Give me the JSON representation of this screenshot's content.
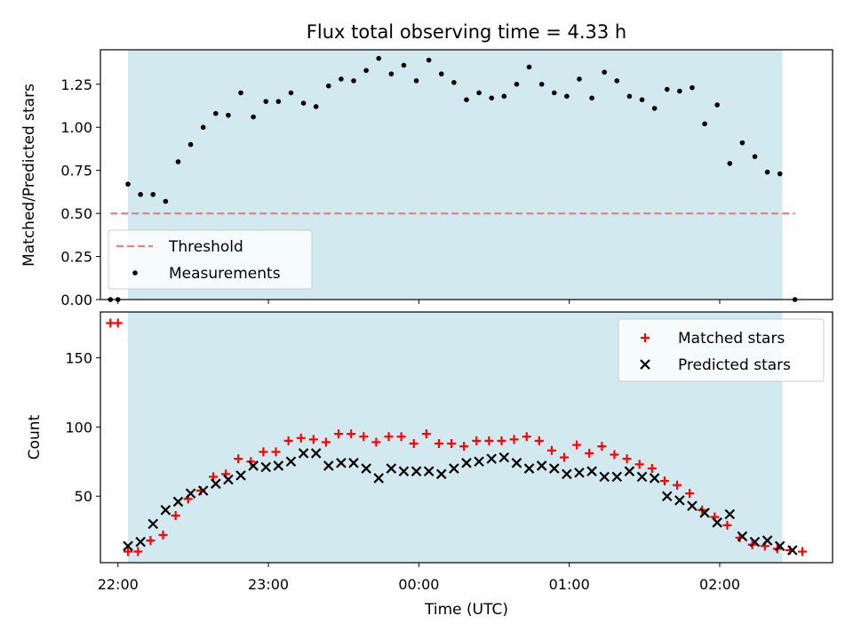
{
  "chart_data": [
    {
      "type": "scatter",
      "title": "Flux total observing time = 4.33 h",
      "ylabel": "Matched/Predicted stars",
      "xlim": [
        "21:53",
        "02:45"
      ],
      "ylim": [
        0,
        1.45
      ],
      "y_ticks": [
        "0.00",
        "0.25",
        "0.50",
        "0.75",
        "1.00",
        "1.25"
      ],
      "shaded_interval": [
        "22:04",
        "02:25"
      ],
      "shade_color": "#d2e9f0",
      "threshold": {
        "name": "Threshold",
        "value": 0.5,
        "x_range": [
          "21:57",
          "02:30"
        ],
        "color": "#f08080"
      },
      "legend": {
        "position": "lower-left",
        "entries": [
          "Threshold",
          "Measurements"
        ]
      },
      "series": [
        {
          "name": "Measurements",
          "color": "#000000",
          "x": [
            "21:57",
            "22:00",
            "22:04",
            "22:09",
            "22:14",
            "22:19",
            "22:24",
            "22:29",
            "22:34",
            "22:39",
            "22:44",
            "22:49",
            "22:54",
            "22:59",
            "23:04",
            "23:09",
            "23:14",
            "23:19",
            "23:24",
            "23:29",
            "23:34",
            "23:39",
            "23:44",
            "23:49",
            "23:54",
            "23:59",
            "00:04",
            "00:09",
            "00:14",
            "00:19",
            "00:24",
            "00:29",
            "00:34",
            "00:39",
            "00:44",
            "00:49",
            "00:54",
            "00:59",
            "01:04",
            "01:09",
            "01:14",
            "01:19",
            "01:24",
            "01:29",
            "01:34",
            "01:39",
            "01:44",
            "01:49",
            "01:54",
            "01:59",
            "02:04",
            "02:09",
            "02:14",
            "02:19",
            "02:24",
            "02:30"
          ],
          "y": [
            0.0,
            0.0,
            0.67,
            0.61,
            0.61,
            0.57,
            0.8,
            0.9,
            1.0,
            1.08,
            1.07,
            1.2,
            1.06,
            1.15,
            1.15,
            1.2,
            1.14,
            1.12,
            1.24,
            1.28,
            1.27,
            1.33,
            1.4,
            1.31,
            1.36,
            1.27,
            1.39,
            1.31,
            1.26,
            1.16,
            1.2,
            1.17,
            1.18,
            1.25,
            1.35,
            1.25,
            1.2,
            1.18,
            1.28,
            1.17,
            1.32,
            1.27,
            1.18,
            1.16,
            1.11,
            1.22,
            1.21,
            1.23,
            1.02,
            1.13,
            0.79,
            0.91,
            0.83,
            0.74,
            0.73,
            0.0
          ]
        }
      ]
    },
    {
      "type": "scatter",
      "xlabel": "Time (UTC)",
      "ylabel": "Count",
      "xlim": [
        "21:53",
        "02:45"
      ],
      "ylim": [
        2,
        183
      ],
      "x_ticks": [
        "22:00",
        "23:00",
        "00:00",
        "01:00",
        "02:00"
      ],
      "y_ticks": [
        "50",
        "100",
        "150"
      ],
      "shaded_interval": [
        "22:04",
        "02:25"
      ],
      "shade_color": "#d2e9f0",
      "legend": {
        "position": "top-right",
        "entries": [
          "Matched stars",
          "Predicted stars"
        ]
      },
      "series": [
        {
          "name": "Matched stars",
          "marker": "plus",
          "color": "#ff0000",
          "x": [
            "21:57",
            "22:00",
            "22:04",
            "22:08",
            "22:13",
            "22:18",
            "22:23",
            "22:28",
            "22:33",
            "22:38",
            "22:43",
            "22:48",
            "22:53",
            "22:58",
            "23:03",
            "23:08",
            "23:13",
            "23:18",
            "23:23",
            "23:28",
            "23:33",
            "23:38",
            "23:43",
            "23:48",
            "23:53",
            "23:58",
            "00:03",
            "00:08",
            "00:13",
            "00:18",
            "00:23",
            "00:28",
            "00:33",
            "00:38",
            "00:43",
            "00:48",
            "00:53",
            "00:58",
            "01:03",
            "01:08",
            "01:13",
            "01:18",
            "01:23",
            "01:28",
            "01:33",
            "01:38",
            "01:43",
            "01:48",
            "01:53",
            "01:58",
            "02:03",
            "02:08",
            "02:13",
            "02:18",
            "02:23",
            "02:28",
            "02:33"
          ],
          "y": [
            175,
            175,
            10,
            10,
            18,
            22,
            36,
            48,
            54,
            64,
            66,
            77,
            75,
            82,
            82,
            90,
            92,
            91,
            89,
            95,
            95,
            93,
            89,
            93,
            93,
            88,
            95,
            88,
            88,
            86,
            90,
            90,
            90,
            91,
            93,
            90,
            83,
            78,
            87,
            81,
            86,
            80,
            77,
            73,
            70,
            61,
            58,
            52,
            40,
            35,
            29,
            20,
            15,
            14,
            12,
            11,
            10
          ]
        },
        {
          "name": "Predicted stars",
          "marker": "x",
          "color": "#000000",
          "x": [
            "22:04",
            "22:09",
            "22:14",
            "22:19",
            "22:24",
            "22:29",
            "22:34",
            "22:39",
            "22:44",
            "22:49",
            "22:54",
            "22:59",
            "23:04",
            "23:09",
            "23:14",
            "23:19",
            "23:24",
            "23:29",
            "23:34",
            "23:39",
            "23:44",
            "23:49",
            "23:54",
            "23:59",
            "00:04",
            "00:09",
            "00:14",
            "00:19",
            "00:24",
            "00:29",
            "00:34",
            "00:39",
            "00:44",
            "00:49",
            "00:54",
            "00:59",
            "01:04",
            "01:09",
            "01:14",
            "01:19",
            "01:24",
            "01:29",
            "01:34",
            "01:39",
            "01:44",
            "01:49",
            "01:54",
            "01:59",
            "02:04",
            "02:09",
            "02:14",
            "02:19",
            "02:24",
            "02:29"
          ],
          "y": [
            14,
            17,
            30,
            40,
            46,
            52,
            54,
            59,
            62,
            65,
            72,
            71,
            72,
            75,
            81,
            81,
            72,
            74,
            74,
            70,
            63,
            70,
            68,
            68,
            68,
            66,
            70,
            74,
            75,
            77,
            78,
            74,
            70,
            72,
            70,
            66,
            67,
            68,
            64,
            64,
            68,
            64,
            63,
            50,
            47,
            43,
            38,
            31,
            37,
            21,
            17,
            18,
            14,
            11
          ]
        }
      ]
    }
  ]
}
